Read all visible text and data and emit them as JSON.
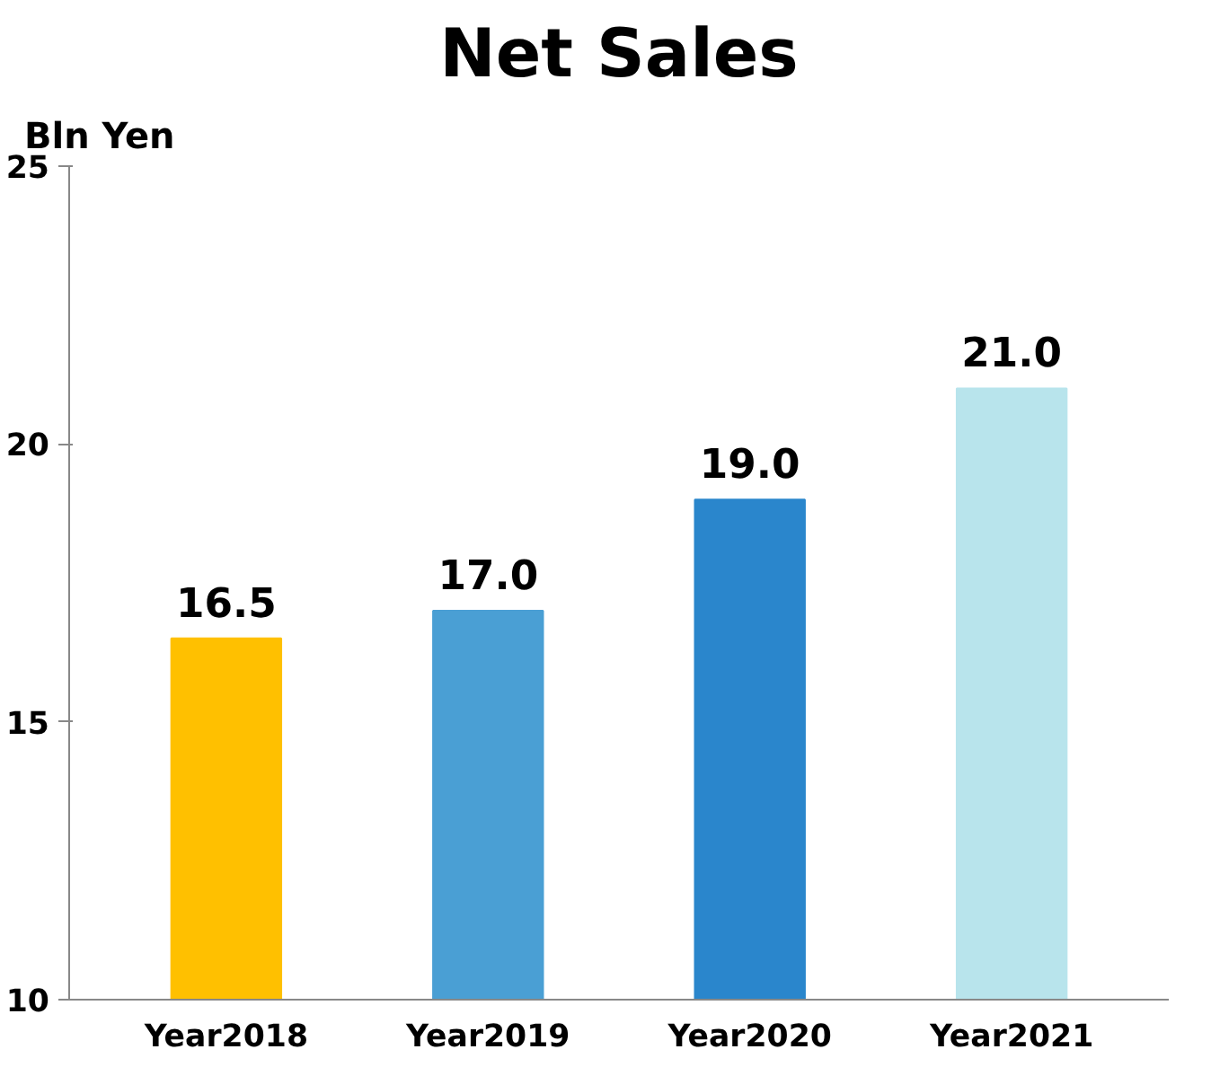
{
  "chart_data": {
    "type": "bar",
    "title": "Net Sales",
    "ylabel": "Bln Yen",
    "categories": [
      "Year2018",
      "Year2019",
      "Year2020",
      "Year2021"
    ],
    "values": [
      16.5,
      17.0,
      19.0,
      21.0
    ],
    "colors": [
      "#ffc000",
      "#4a9fd4",
      "#2a86cc",
      "#b8e4ec"
    ],
    "value_labels": [
      "16.5",
      "17.0",
      "19.0",
      "21.0"
    ],
    "ylim": [
      10,
      25
    ],
    "yticks": [
      10,
      15,
      20,
      25
    ],
    "grid": false
  }
}
